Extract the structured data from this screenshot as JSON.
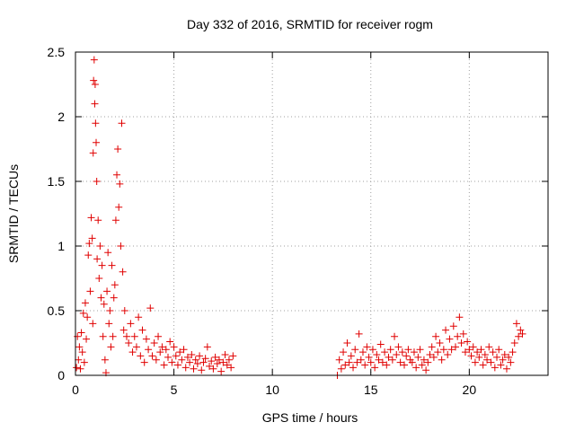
{
  "chart_data": {
    "type": "scatter",
    "title": "Day 332 of 2016, SRMTID for receiver rogm",
    "xlabel": "GPS time / hours",
    "ylabel": "SRMTID / TECUs",
    "xlim": [
      0,
      24
    ],
    "ylim": [
      0,
      2.5
    ],
    "x_ticks": [
      0,
      5,
      10,
      15,
      20
    ],
    "x_tick_labels": [
      "0",
      "5",
      "10",
      "15",
      "20"
    ],
    "y_ticks": [
      0,
      0.5,
      1,
      1.5,
      2,
      2.5
    ],
    "y_tick_labels": [
      "0",
      "0.5",
      "1",
      "1.5",
      "2",
      "2.5"
    ],
    "grid": true,
    "marker": "+",
    "color": "#e00000",
    "series": [
      {
        "name": "SRMTID",
        "points": [
          [
            0.05,
            0.06
          ],
          [
            0.1,
            0.3
          ],
          [
            0.15,
            0.12
          ],
          [
            0.2,
            0.22
          ],
          [
            0.25,
            0.05
          ],
          [
            0.3,
            0.33
          ],
          [
            0.35,
            0.18
          ],
          [
            0.4,
            0.48
          ],
          [
            0.45,
            0.1
          ],
          [
            0.5,
            0.56
          ],
          [
            0.55,
            0.28
          ],
          [
            0.6,
            0.45
          ],
          [
            0.65,
            0.93
          ],
          [
            0.7,
            1.02
          ],
          [
            0.75,
            0.65
          ],
          [
            0.8,
            1.22
          ],
          [
            0.85,
            1.06
          ],
          [
            0.88,
            0.4
          ],
          [
            0.9,
            1.72
          ],
          [
            0.92,
            2.28
          ],
          [
            0.95,
            2.44
          ],
          [
            0.98,
            2.1
          ],
          [
            1.0,
            2.25
          ],
          [
            1.02,
            1.95
          ],
          [
            1.05,
            1.8
          ],
          [
            1.08,
            1.5
          ],
          [
            1.1,
            0.9
          ],
          [
            1.15,
            1.2
          ],
          [
            1.2,
            0.75
          ],
          [
            1.25,
            1.0
          ],
          [
            1.3,
            0.6
          ],
          [
            1.35,
            0.85
          ],
          [
            1.4,
            0.3
          ],
          [
            1.45,
            0.55
          ],
          [
            1.5,
            0.12
          ],
          [
            1.55,
            0.02
          ],
          [
            1.6,
            0.65
          ],
          [
            1.65,
            0.95
          ],
          [
            1.7,
            0.4
          ],
          [
            1.75,
            0.5
          ],
          [
            1.8,
            0.22
          ],
          [
            1.85,
            0.85
          ],
          [
            1.9,
            0.3
          ],
          [
            1.95,
            0.6
          ],
          [
            2.0,
            0.7
          ],
          [
            2.05,
            1.2
          ],
          [
            2.1,
            1.55
          ],
          [
            2.15,
            1.75
          ],
          [
            2.2,
            1.3
          ],
          [
            2.25,
            1.48
          ],
          [
            2.3,
            1.0
          ],
          [
            2.35,
            1.95
          ],
          [
            2.4,
            0.8
          ],
          [
            2.45,
            0.35
          ],
          [
            2.5,
            0.5
          ],
          [
            2.6,
            0.3
          ],
          [
            2.7,
            0.25
          ],
          [
            2.8,
            0.4
          ],
          [
            2.9,
            0.18
          ],
          [
            3.0,
            0.3
          ],
          [
            3.1,
            0.22
          ],
          [
            3.2,
            0.45
          ],
          [
            3.3,
            0.15
          ],
          [
            3.4,
            0.35
          ],
          [
            3.5,
            0.1
          ],
          [
            3.6,
            0.28
          ],
          [
            3.7,
            0.2
          ],
          [
            3.8,
            0.52
          ],
          [
            3.9,
            0.15
          ],
          [
            4.0,
            0.25
          ],
          [
            4.1,
            0.12
          ],
          [
            4.2,
            0.3
          ],
          [
            4.3,
            0.18
          ],
          [
            4.4,
            0.22
          ],
          [
            4.5,
            0.08
          ],
          [
            4.6,
            0.2
          ],
          [
            4.7,
            0.14
          ],
          [
            4.8,
            0.26
          ],
          [
            4.9,
            0.1
          ],
          [
            5.0,
            0.22
          ],
          [
            5.1,
            0.15
          ],
          [
            5.2,
            0.08
          ],
          [
            5.3,
            0.18
          ],
          [
            5.4,
            0.12
          ],
          [
            5.5,
            0.2
          ],
          [
            5.6,
            0.06
          ],
          [
            5.7,
            0.14
          ],
          [
            5.8,
            0.1
          ],
          [
            5.9,
            0.16
          ],
          [
            6.0,
            0.05
          ],
          [
            6.1,
            0.12
          ],
          [
            6.2,
            0.09
          ],
          [
            6.3,
            0.15
          ],
          [
            6.4,
            0.04
          ],
          [
            6.5,
            0.1
          ],
          [
            6.6,
            0.13
          ],
          [
            6.7,
            0.22
          ],
          [
            6.8,
            0.07
          ],
          [
            6.9,
            0.11
          ],
          [
            7.0,
            0.05
          ],
          [
            7.1,
            0.14
          ],
          [
            7.2,
            0.09
          ],
          [
            7.3,
            0.12
          ],
          [
            7.4,
            0.03
          ],
          [
            7.5,
            0.1
          ],
          [
            7.6,
            0.16
          ],
          [
            7.7,
            0.08
          ],
          [
            7.8,
            0.12
          ],
          [
            7.9,
            0.06
          ],
          [
            8.0,
            0.15
          ],
          [
            13.3,
            0.0
          ],
          [
            13.4,
            0.12
          ],
          [
            13.5,
            0.05
          ],
          [
            13.6,
            0.18
          ],
          [
            13.7,
            0.08
          ],
          [
            13.8,
            0.25
          ],
          [
            13.9,
            0.1
          ],
          [
            14.0,
            0.15
          ],
          [
            14.1,
            0.06
          ],
          [
            14.2,
            0.2
          ],
          [
            14.3,
            0.1
          ],
          [
            14.4,
            0.32
          ],
          [
            14.5,
            0.12
          ],
          [
            14.6,
            0.18
          ],
          [
            14.7,
            0.08
          ],
          [
            14.8,
            0.22
          ],
          [
            14.9,
            0.14
          ],
          [
            15.0,
            0.1
          ],
          [
            15.1,
            0.2
          ],
          [
            15.2,
            0.06
          ],
          [
            15.3,
            0.16
          ],
          [
            15.4,
            0.12
          ],
          [
            15.5,
            0.24
          ],
          [
            15.6,
            0.1
          ],
          [
            15.7,
            0.18
          ],
          [
            15.8,
            0.08
          ],
          [
            15.9,
            0.14
          ],
          [
            16.0,
            0.2
          ],
          [
            16.1,
            0.12
          ],
          [
            16.2,
            0.3
          ],
          [
            16.3,
            0.16
          ],
          [
            16.4,
            0.22
          ],
          [
            16.5,
            0.1
          ],
          [
            16.6,
            0.18
          ],
          [
            16.7,
            0.08
          ],
          [
            16.8,
            0.15
          ],
          [
            16.9,
            0.2
          ],
          [
            17.0,
            0.12
          ],
          [
            17.1,
            0.1
          ],
          [
            17.2,
            0.18
          ],
          [
            17.3,
            0.06
          ],
          [
            17.4,
            0.14
          ],
          [
            17.5,
            0.2
          ],
          [
            17.6,
            0.08
          ],
          [
            17.7,
            0.12
          ],
          [
            17.8,
            0.04
          ],
          [
            17.9,
            0.1
          ],
          [
            18.0,
            0.16
          ],
          [
            18.1,
            0.22
          ],
          [
            18.2,
            0.14
          ],
          [
            18.3,
            0.3
          ],
          [
            18.4,
            0.18
          ],
          [
            18.5,
            0.25
          ],
          [
            18.6,
            0.12
          ],
          [
            18.7,
            0.2
          ],
          [
            18.8,
            0.35
          ],
          [
            18.9,
            0.16
          ],
          [
            19.0,
            0.28
          ],
          [
            19.1,
            0.2
          ],
          [
            19.2,
            0.38
          ],
          [
            19.3,
            0.22
          ],
          [
            19.4,
            0.3
          ],
          [
            19.5,
            0.45
          ],
          [
            19.6,
            0.25
          ],
          [
            19.7,
            0.32
          ],
          [
            19.8,
            0.18
          ],
          [
            19.9,
            0.26
          ],
          [
            20.0,
            0.2
          ],
          [
            20.1,
            0.15
          ],
          [
            20.2,
            0.22
          ],
          [
            20.3,
            0.1
          ],
          [
            20.4,
            0.18
          ],
          [
            20.5,
            0.14
          ],
          [
            20.6,
            0.2
          ],
          [
            20.7,
            0.08
          ],
          [
            20.8,
            0.16
          ],
          [
            20.9,
            0.12
          ],
          [
            21.0,
            0.22
          ],
          [
            21.1,
            0.1
          ],
          [
            21.2,
            0.18
          ],
          [
            21.3,
            0.06
          ],
          [
            21.4,
            0.14
          ],
          [
            21.5,
            0.2
          ],
          [
            21.6,
            0.08
          ],
          [
            21.7,
            0.12
          ],
          [
            21.8,
            0.16
          ],
          [
            21.9,
            0.05
          ],
          [
            22.0,
            0.14
          ],
          [
            22.1,
            0.1
          ],
          [
            22.2,
            0.18
          ],
          [
            22.3,
            0.25
          ],
          [
            22.4,
            0.4
          ],
          [
            22.5,
            0.3
          ],
          [
            22.6,
            0.35
          ],
          [
            22.7,
            0.32
          ]
        ]
      }
    ]
  }
}
